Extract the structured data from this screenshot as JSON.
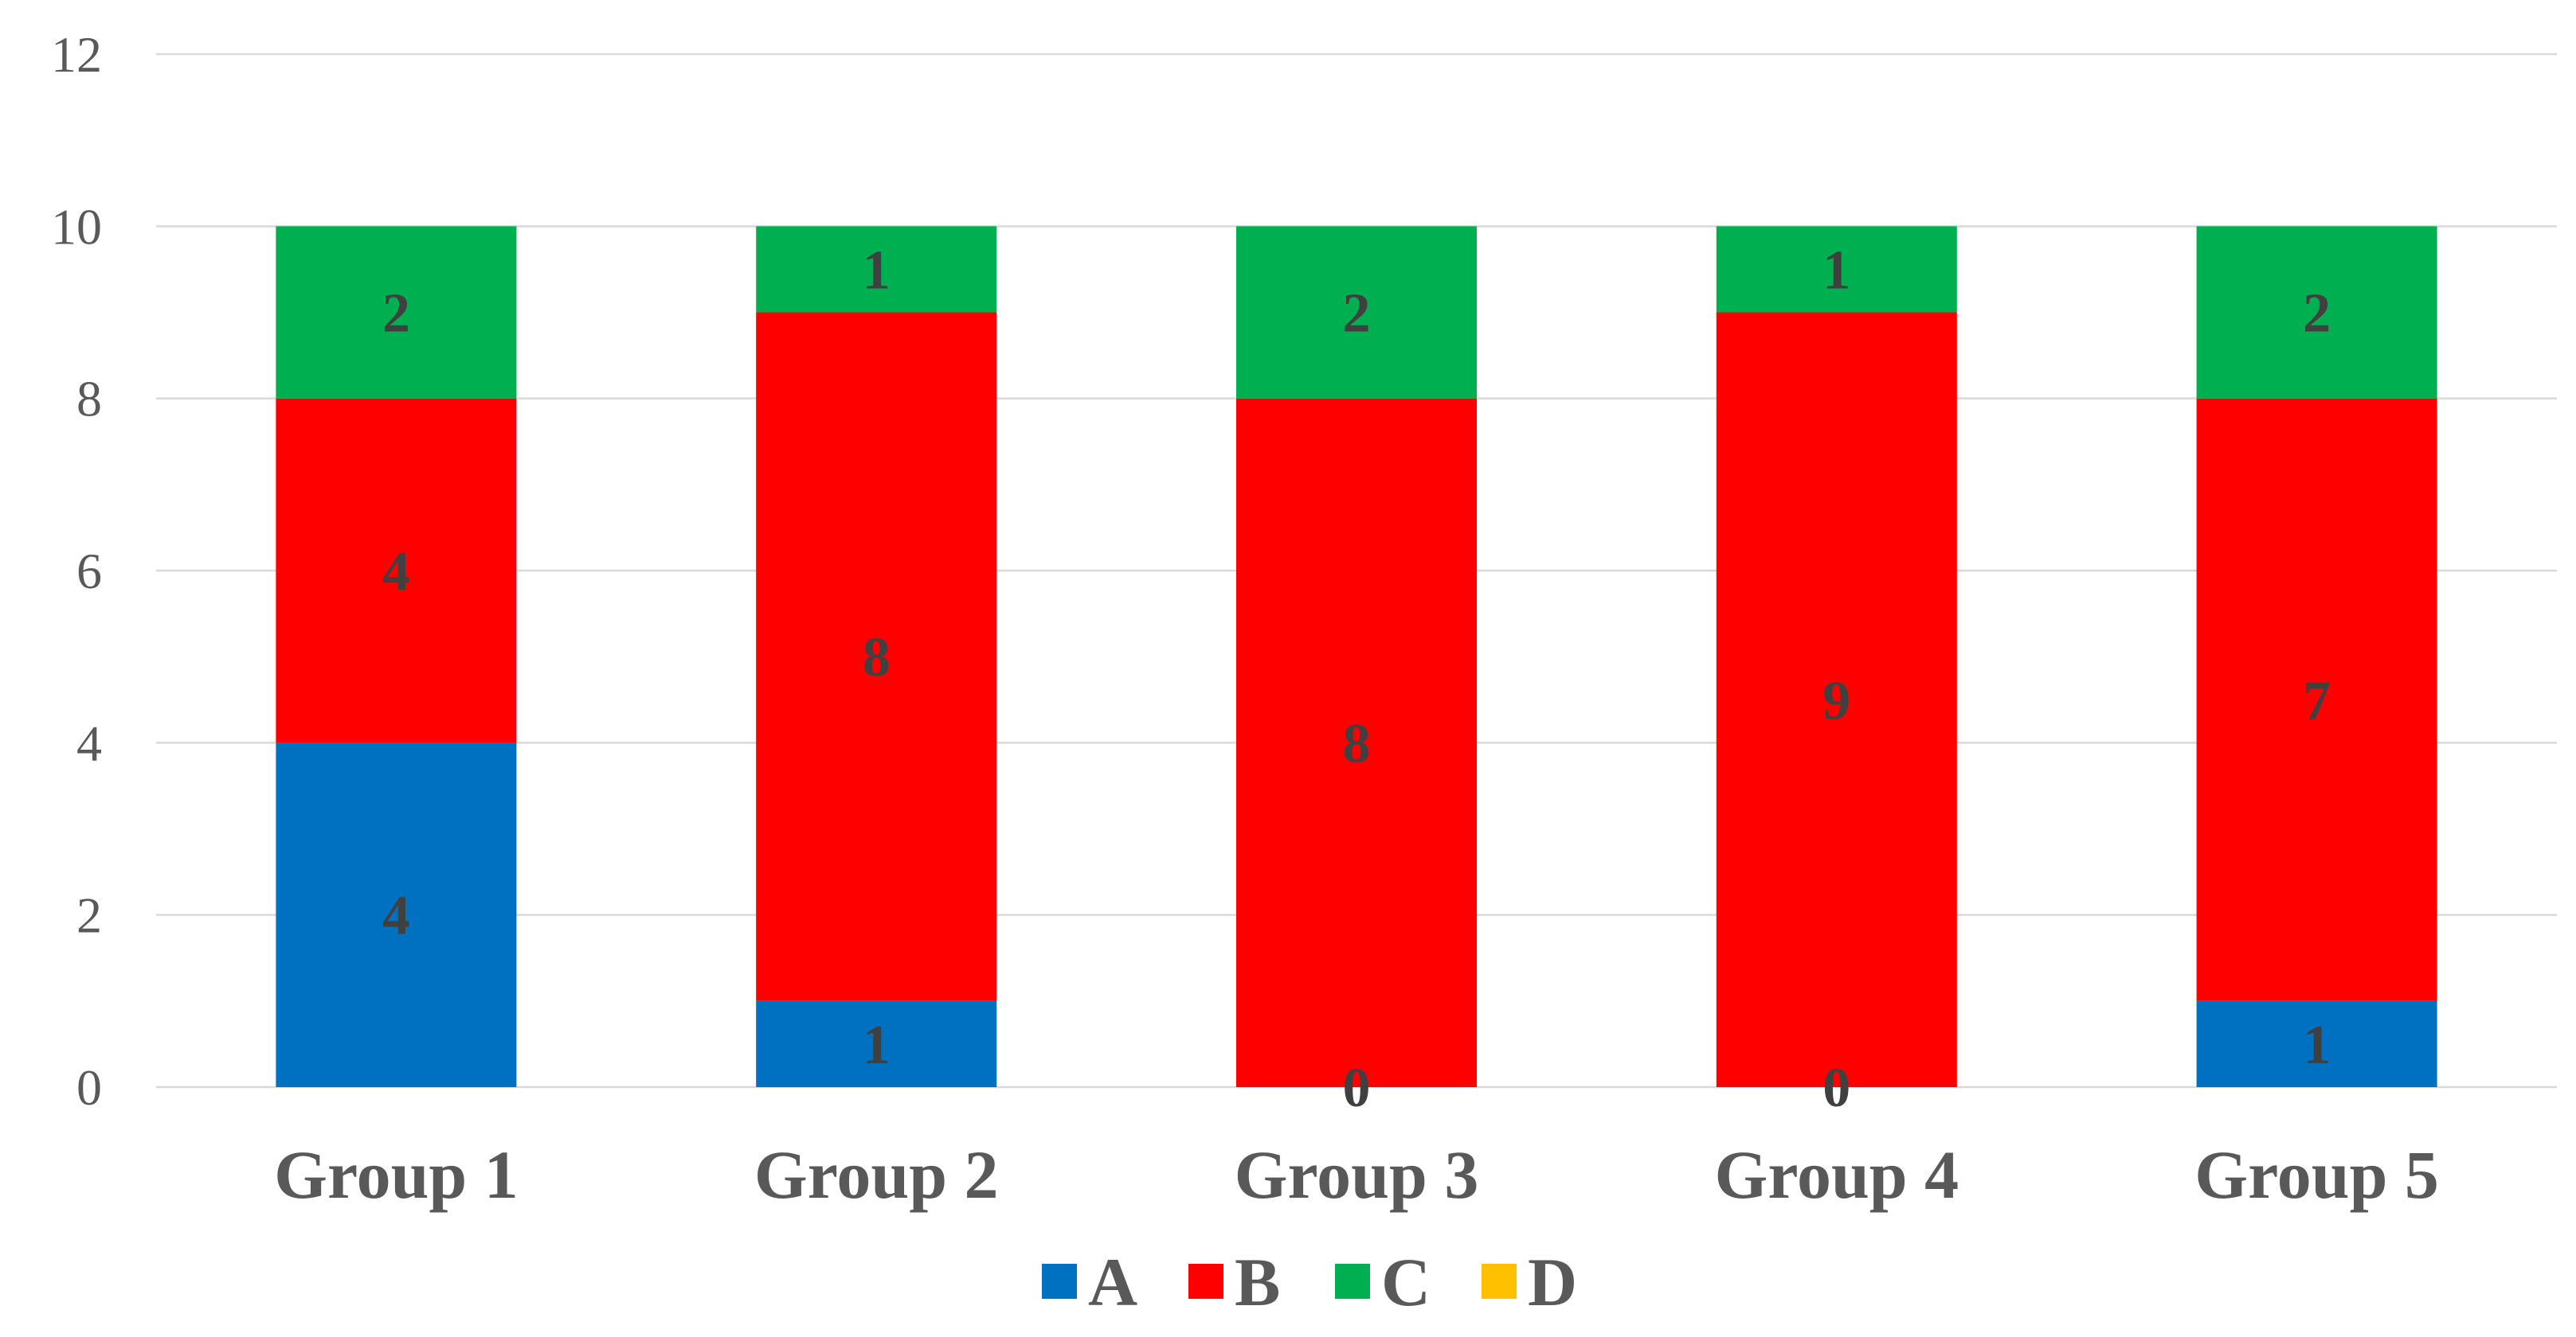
{
  "chart_data": {
    "type": "bar",
    "stacked": true,
    "title": "",
    "xlabel": "",
    "ylabel": "",
    "categories": [
      "Group 1",
      "Group 2",
      "Group 3",
      "Group 4",
      "Group 5"
    ],
    "series": [
      {
        "name": "A",
        "color": "#0070C0",
        "values": [
          4,
          1,
          0,
          0,
          1
        ]
      },
      {
        "name": "B",
        "color": "#FF0000",
        "values": [
          4,
          8,
          8,
          9,
          7
        ]
      },
      {
        "name": "C",
        "color": "#00B050",
        "values": [
          2,
          1,
          2,
          1,
          2
        ]
      },
      {
        "name": "D",
        "color": "#FFC000",
        "values": [
          0,
          0,
          0,
          0,
          0
        ]
      }
    ],
    "ylim": [
      0,
      12
    ],
    "yticks": [
      0,
      2,
      4,
      6,
      8,
      10,
      12
    ],
    "grid": true,
    "data_labels": true,
    "legend_position": "bottom"
  }
}
